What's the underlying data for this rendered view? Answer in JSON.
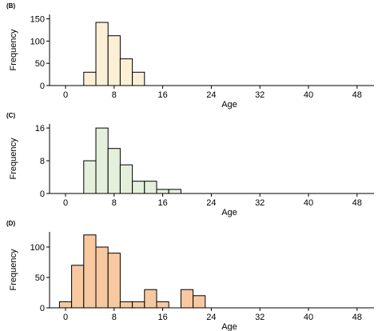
{
  "chart_data": [
    {
      "panel_label": "(B)",
      "type": "bar",
      "xlabel": "Age",
      "ylabel": "Frequency",
      "xlim": [
        -4,
        52
      ],
      "xticks": [
        0,
        8,
        16,
        24,
        32,
        40,
        48
      ],
      "yticks": [
        0,
        50,
        100,
        150
      ],
      "ylim": [
        0,
        160
      ],
      "bin_width": 2,
      "bins": [
        {
          "x0": 3,
          "x1": 5,
          "value": 30
        },
        {
          "x0": 5,
          "x1": 7,
          "value": 142
        },
        {
          "x0": 7,
          "x1": 9,
          "value": 112
        },
        {
          "x0": 9,
          "x1": 11,
          "value": 60
        },
        {
          "x0": 11,
          "x1": 13,
          "value": 30
        }
      ],
      "fill_color": "#fbf0d6",
      "grid": false
    },
    {
      "panel_label": "(C)",
      "type": "bar",
      "xlabel": "Age",
      "ylabel": "Frequency",
      "xlim": [
        -4,
        52
      ],
      "xticks": [
        0,
        8,
        16,
        24,
        32,
        40,
        48
      ],
      "yticks": [
        0,
        8,
        16
      ],
      "ylim": [
        0,
        17
      ],
      "bin_width": 2,
      "bins": [
        {
          "x0": 3,
          "x1": 5,
          "value": 8
        },
        {
          "x0": 5,
          "x1": 7,
          "value": 16
        },
        {
          "x0": 7,
          "x1": 9,
          "value": 11
        },
        {
          "x0": 9,
          "x1": 11,
          "value": 7
        },
        {
          "x0": 11,
          "x1": 13,
          "value": 3
        },
        {
          "x0": 13,
          "x1": 15,
          "value": 3
        },
        {
          "x0": 15,
          "x1": 17,
          "value": 1
        },
        {
          "x0": 17,
          "x1": 19,
          "value": 1
        }
      ],
      "fill_color": "#e4f0dc",
      "grid": false
    },
    {
      "panel_label": "(D)",
      "type": "bar",
      "xlabel": "Age",
      "ylabel": "Frequency",
      "xlim": [
        -4,
        52
      ],
      "xticks": [
        0,
        8,
        16,
        24,
        32,
        40,
        48
      ],
      "yticks": [
        0,
        50,
        100
      ],
      "ylim": [
        0,
        125
      ],
      "bin_width": 2,
      "bins": [
        {
          "x0": -1,
          "x1": 1,
          "value": 10
        },
        {
          "x0": 1,
          "x1": 3,
          "value": 70
        },
        {
          "x0": 3,
          "x1": 5,
          "value": 120
        },
        {
          "x0": 5,
          "x1": 7,
          "value": 100
        },
        {
          "x0": 7,
          "x1": 9,
          "value": 90
        },
        {
          "x0": 9,
          "x1": 11,
          "value": 10
        },
        {
          "x0": 11,
          "x1": 13,
          "value": 10
        },
        {
          "x0": 13,
          "x1": 15,
          "value": 30
        },
        {
          "x0": 15,
          "x1": 17,
          "value": 10
        },
        {
          "x0": 19,
          "x1": 21,
          "value": 30
        },
        {
          "x0": 21,
          "x1": 23,
          "value": 20
        }
      ],
      "fill_color": "#f8c8a0",
      "grid": false
    }
  ]
}
